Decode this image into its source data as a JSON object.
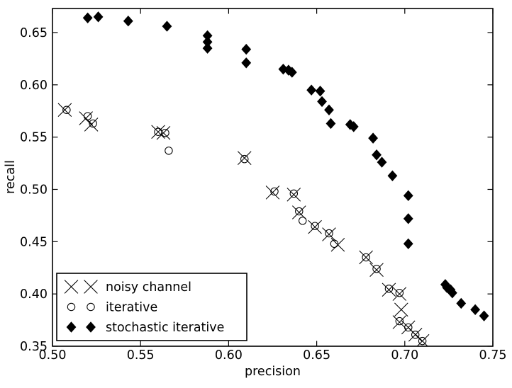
{
  "figure": {
    "background_color": "#ffffff",
    "foreground_color": "#000000"
  },
  "chart_data": {
    "type": "scatter",
    "title": "",
    "xlabel": "precision",
    "ylabel": "recall",
    "xlim": [
      0.5,
      0.75
    ],
    "ylim": [
      0.35,
      0.673
    ],
    "grid": false,
    "x_ticks": [
      0.5,
      0.55,
      0.6,
      0.65,
      0.7,
      0.75
    ],
    "x_tick_labels": [
      "0.50",
      "0.55",
      "0.60",
      "0.65",
      "0.70",
      "0.75"
    ],
    "y_ticks": [
      0.35,
      0.4,
      0.45,
      0.5,
      0.55,
      0.6,
      0.65
    ],
    "y_tick_labels": [
      "0.35",
      "0.40",
      "0.45",
      "0.50",
      "0.55",
      "0.60",
      "0.65"
    ],
    "legend": {
      "position": "lower-left",
      "markers_per_entry": 2,
      "entries": [
        {
          "label": "noisy channel",
          "marker": "x"
        },
        {
          "label": "iterative",
          "marker": "circle"
        },
        {
          "label": "stochastic iterative",
          "marker": "diamond"
        }
      ]
    },
    "series": [
      {
        "name": "noisy channel",
        "marker": "x",
        "color": "#000000",
        "points": [
          [
            0.507,
            0.576
          ],
          [
            0.519,
            0.568
          ],
          [
            0.522,
            0.562
          ],
          [
            0.56,
            0.555
          ],
          [
            0.563,
            0.554
          ],
          [
            0.609,
            0.53
          ],
          [
            0.625,
            0.497
          ],
          [
            0.637,
            0.495
          ],
          [
            0.64,
            0.478
          ],
          [
            0.649,
            0.464
          ],
          [
            0.657,
            0.457
          ],
          [
            0.662,
            0.447
          ],
          [
            0.678,
            0.435
          ],
          [
            0.684,
            0.423
          ],
          [
            0.691,
            0.404
          ],
          [
            0.697,
            0.4
          ],
          [
            0.698,
            0.385
          ],
          [
            0.697,
            0.373
          ],
          [
            0.702,
            0.368
          ],
          [
            0.706,
            0.361
          ],
          [
            0.71,
            0.355
          ]
        ]
      },
      {
        "name": "iterative",
        "marker": "circle",
        "color": "#000000",
        "points": [
          [
            0.508,
            0.576
          ],
          [
            0.52,
            0.57
          ],
          [
            0.523,
            0.563
          ],
          [
            0.56,
            0.555
          ],
          [
            0.564,
            0.554
          ],
          [
            0.566,
            0.537
          ],
          [
            0.609,
            0.529
          ],
          [
            0.626,
            0.498
          ],
          [
            0.637,
            0.496
          ],
          [
            0.64,
            0.479
          ],
          [
            0.642,
            0.47
          ],
          [
            0.649,
            0.465
          ],
          [
            0.657,
            0.458
          ],
          [
            0.66,
            0.448
          ],
          [
            0.678,
            0.435
          ],
          [
            0.684,
            0.424
          ],
          [
            0.691,
            0.405
          ],
          [
            0.697,
            0.401
          ],
          [
            0.697,
            0.374
          ],
          [
            0.702,
            0.368
          ],
          [
            0.706,
            0.361
          ],
          [
            0.71,
            0.355
          ]
        ]
      },
      {
        "name": "stochastic iterative",
        "marker": "diamond",
        "color": "#000000",
        "points": [
          [
            0.52,
            0.664
          ],
          [
            0.526,
            0.665
          ],
          [
            0.543,
            0.661
          ],
          [
            0.565,
            0.656
          ],
          [
            0.588,
            0.647
          ],
          [
            0.588,
            0.641
          ],
          [
            0.588,
            0.635
          ],
          [
            0.61,
            0.634
          ],
          [
            0.61,
            0.621
          ],
          [
            0.631,
            0.615
          ],
          [
            0.634,
            0.614
          ],
          [
            0.636,
            0.612
          ],
          [
            0.647,
            0.595
          ],
          [
            0.652,
            0.594
          ],
          [
            0.653,
            0.584
          ],
          [
            0.657,
            0.576
          ],
          [
            0.658,
            0.563
          ],
          [
            0.669,
            0.562
          ],
          [
            0.671,
            0.56
          ],
          [
            0.682,
            0.549
          ],
          [
            0.684,
            0.533
          ],
          [
            0.687,
            0.526
          ],
          [
            0.693,
            0.513
          ],
          [
            0.702,
            0.494
          ],
          [
            0.702,
            0.472
          ],
          [
            0.702,
            0.448
          ],
          [
            0.723,
            0.409
          ],
          [
            0.724,
            0.406
          ],
          [
            0.726,
            0.404
          ],
          [
            0.727,
            0.401
          ],
          [
            0.732,
            0.391
          ],
          [
            0.74,
            0.385
          ],
          [
            0.745,
            0.379
          ]
        ]
      }
    ]
  }
}
